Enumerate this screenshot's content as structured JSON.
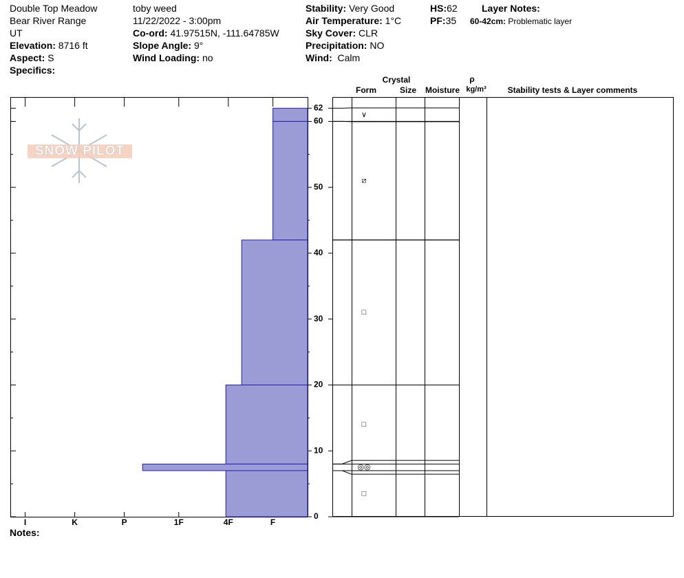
{
  "header": {
    "site": "Double Top Meadow",
    "range": "Bear River Range",
    "state": "UT",
    "elevation": {
      "label": "Elevation:",
      "value": "8716 ft"
    },
    "aspect": {
      "label": "Aspect:",
      "value": "S"
    },
    "specifics": {
      "label": "Specifics:"
    },
    "observer": "toby weed",
    "datetime": "11/22/2022 - 3:00pm",
    "coord": {
      "label": "Co-ord:",
      "value": "41.97515N, -111.64785W"
    },
    "slope": {
      "label": "Slope Angle:",
      "value": "9°"
    },
    "wind_loading": {
      "label": "Wind Loading:",
      "value": "no"
    },
    "stability": {
      "label": "Stability:",
      "value": "Very Good"
    },
    "air_temp": {
      "label": "Air Temperature:",
      "value": "1°C"
    },
    "sky": {
      "label": "Sky Cover:",
      "value": "CLR"
    },
    "precip": {
      "label": "Precipitation:",
      "value": "NO"
    },
    "wind": {
      "label": "Wind:",
      "value": "Calm"
    },
    "hs": {
      "label": "HS:",
      "value": "62"
    },
    "pf": {
      "label": "PF:",
      "value": "35"
    },
    "layer_notes": {
      "label": "Layer Notes:"
    },
    "layer_note": {
      "label": "60-42cm:",
      "value": "Problematic layer"
    }
  },
  "logo": "SNOW PILOT",
  "notes_label": "Notes:",
  "columns": {
    "crystal": "Crystal",
    "form": "Form",
    "size": "Size",
    "moisture": "Moisture",
    "rho": "ρ",
    "density_unit": "kg/m³",
    "comments": "Stability tests & Layer comments"
  },
  "chart_data": {
    "type": "bar",
    "orientation": "horizontal",
    "ylim": [
      0,
      63.7
    ],
    "yticks": [
      0,
      10,
      20,
      30,
      40,
      50,
      60,
      62
    ],
    "minor_yticks": [
      5,
      15,
      25,
      35,
      45,
      55
    ],
    "xlim": [
      0,
      6
    ],
    "xticks": [
      {
        "value": 5.7,
        "label": "I"
      },
      {
        "value": 4.7,
        "label": "K"
      },
      {
        "value": 3.7,
        "label": "P"
      },
      {
        "value": 2.6,
        "label": "1F"
      },
      {
        "value": 1.6,
        "label": "4F"
      },
      {
        "value": 0.7,
        "label": "F"
      }
    ],
    "color": "#9b9bd6",
    "edge_color": "#1f1fb0",
    "layers": [
      {
        "top": 62,
        "bottom": 60,
        "hardness": 0.7,
        "form": "∨"
      },
      {
        "top": 60,
        "bottom": 42,
        "hardness": 0.7,
        "form": "⧄"
      },
      {
        "top": 42,
        "bottom": 20,
        "hardness": 1.33,
        "form": "□"
      },
      {
        "top": 20,
        "bottom": 8,
        "hardness": 1.65,
        "form": "□"
      },
      {
        "top": 8,
        "bottom": 7,
        "hardness": 3.33,
        "form": "◎◎"
      },
      {
        "top": 7,
        "bottom": 0,
        "hardness": 1.65,
        "form": "□"
      }
    ]
  }
}
